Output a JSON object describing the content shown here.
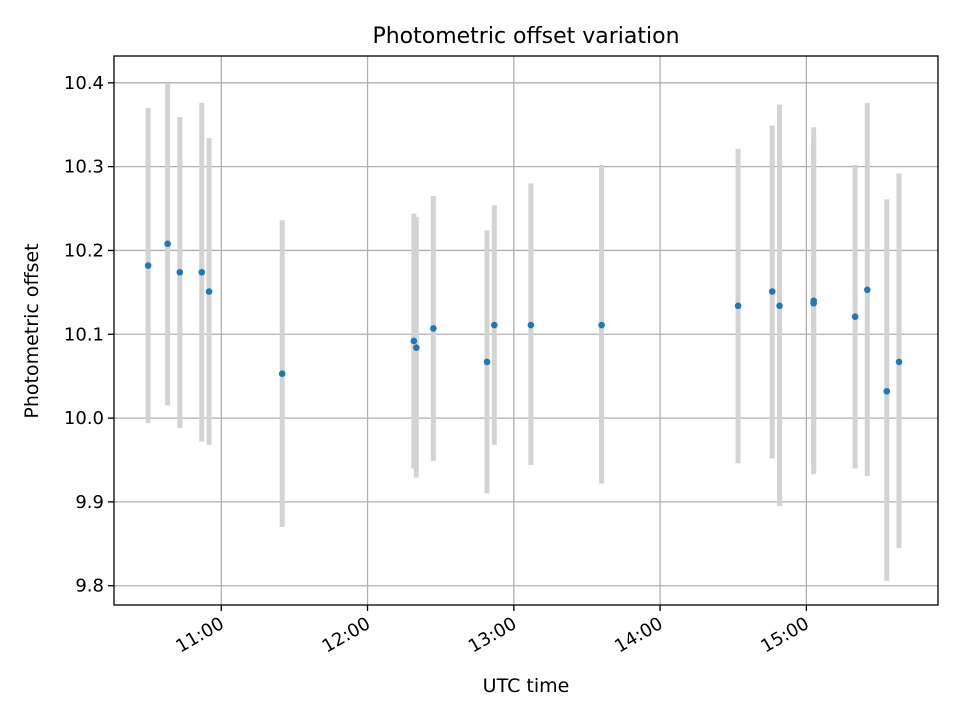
{
  "chart_data": {
    "type": "scatter",
    "title": "Photometric offset variation",
    "xlabel": "UTC time",
    "ylabel": "Photometric offset",
    "xlim": [
      "10:16",
      "15:54"
    ],
    "ylim": [
      9.777,
      10.432
    ],
    "x_ticks": [
      "11:00",
      "12:00",
      "13:00",
      "14:00",
      "15:00"
    ],
    "y_ticks": [
      "9.8",
      "9.9",
      "10.0",
      "10.1",
      "10.2",
      "10.3",
      "10.4"
    ],
    "grid": true,
    "colors": {
      "points": "#1f77b4",
      "error_bars": "#d3d3d3",
      "grid": "#b0b0b0"
    },
    "series": [
      {
        "points": [
          {
            "time": "10:30",
            "y": 10.182,
            "ylow": 9.994,
            "yhigh": 10.37
          },
          {
            "time": "10:38",
            "y": 10.208,
            "ylow": 10.015,
            "yhigh": 10.4
          },
          {
            "time": "10:43",
            "y": 10.174,
            "ylow": 9.988,
            "yhigh": 10.359
          },
          {
            "time": "10:52",
            "y": 10.174,
            "ylow": 9.972,
            "yhigh": 10.376
          },
          {
            "time": "10:55",
            "y": 10.151,
            "ylow": 9.968,
            "yhigh": 10.334
          },
          {
            "time": "11:25",
            "y": 10.053,
            "ylow": 9.87,
            "yhigh": 10.236
          },
          {
            "time": "12:19",
            "y": 10.092,
            "ylow": 9.94,
            "yhigh": 10.244
          },
          {
            "time": "12:20",
            "y": 10.084,
            "ylow": 9.929,
            "yhigh": 10.24
          },
          {
            "time": "12:27",
            "y": 10.107,
            "ylow": 9.949,
            "yhigh": 10.265
          },
          {
            "time": "12:49",
            "y": 10.067,
            "ylow": 9.91,
            "yhigh": 10.224
          },
          {
            "time": "12:52",
            "y": 10.111,
            "ylow": 9.968,
            "yhigh": 10.254
          },
          {
            "time": "13:07",
            "y": 10.111,
            "ylow": 9.944,
            "yhigh": 10.28
          },
          {
            "time": "13:36",
            "y": 10.111,
            "ylow": 9.922,
            "yhigh": 10.302
          },
          {
            "time": "14:32",
            "y": 10.134,
            "ylow": 9.946,
            "yhigh": 10.321
          },
          {
            "time": "14:46",
            "y": 10.151,
            "ylow": 9.952,
            "yhigh": 10.349
          },
          {
            "time": "14:49",
            "y": 10.134,
            "ylow": 9.895,
            "yhigh": 10.374
          },
          {
            "time": "15:03",
            "y": 10.14,
            "ylow": 9.933,
            "yhigh": 10.347
          },
          {
            "time": "15:03",
            "y": 10.137,
            "ylow": 9.94,
            "yhigh": 10.334
          },
          {
            "time": "15:20",
            "y": 10.121,
            "ylow": 9.94,
            "yhigh": 10.302
          },
          {
            "time": "15:25",
            "y": 10.153,
            "ylow": 9.931,
            "yhigh": 10.376
          },
          {
            "time": "15:33",
            "y": 10.032,
            "ylow": 9.806,
            "yhigh": 10.261
          },
          {
            "time": "15:38",
            "y": 10.067,
            "ylow": 9.845,
            "yhigh": 10.292
          }
        ]
      }
    ]
  }
}
